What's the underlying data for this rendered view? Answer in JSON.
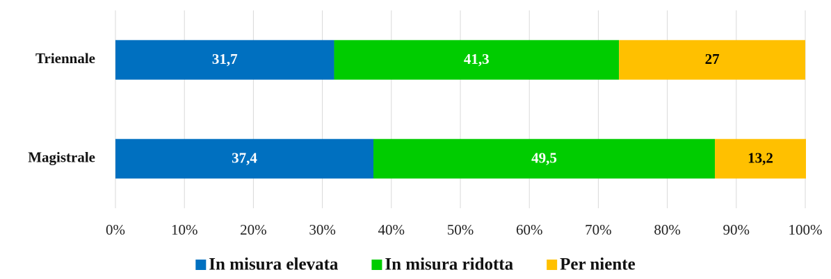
{
  "chart_data": {
    "type": "bar",
    "orientation": "horizontal",
    "stacked": true,
    "categories": [
      "Triennale",
      "Magistrale"
    ],
    "series": [
      {
        "name": "In misura elevata",
        "color": "#0070c0",
        "values": [
          31.7,
          37.4
        ],
        "value_labels": [
          "31,7",
          "37,4"
        ]
      },
      {
        "name": "In misura ridotta",
        "color": "#00cc00",
        "values": [
          41.3,
          49.5
        ],
        "value_labels": [
          "41,3",
          "49,5"
        ]
      },
      {
        "name": "Per niente",
        "color": "#ffc000",
        "values": [
          27,
          13.2
        ],
        "value_labels": [
          "27",
          "13,2"
        ]
      }
    ],
    "xlim": [
      0,
      100
    ],
    "xticks": [
      {
        "value": 0,
        "label": "0%"
      },
      {
        "value": 10,
        "label": "10%"
      },
      {
        "value": 20,
        "label": "20%"
      },
      {
        "value": 30,
        "label": "30%"
      },
      {
        "value": 40,
        "label": "40%"
      },
      {
        "value": 50,
        "label": "50%"
      },
      {
        "value": 60,
        "label": "60%"
      },
      {
        "value": 70,
        "label": "70%"
      },
      {
        "value": 80,
        "label": "80%"
      },
      {
        "value": 90,
        "label": "90%"
      },
      {
        "value": 100,
        "label": "100%"
      }
    ],
    "grid": true,
    "legend": "bottom"
  }
}
